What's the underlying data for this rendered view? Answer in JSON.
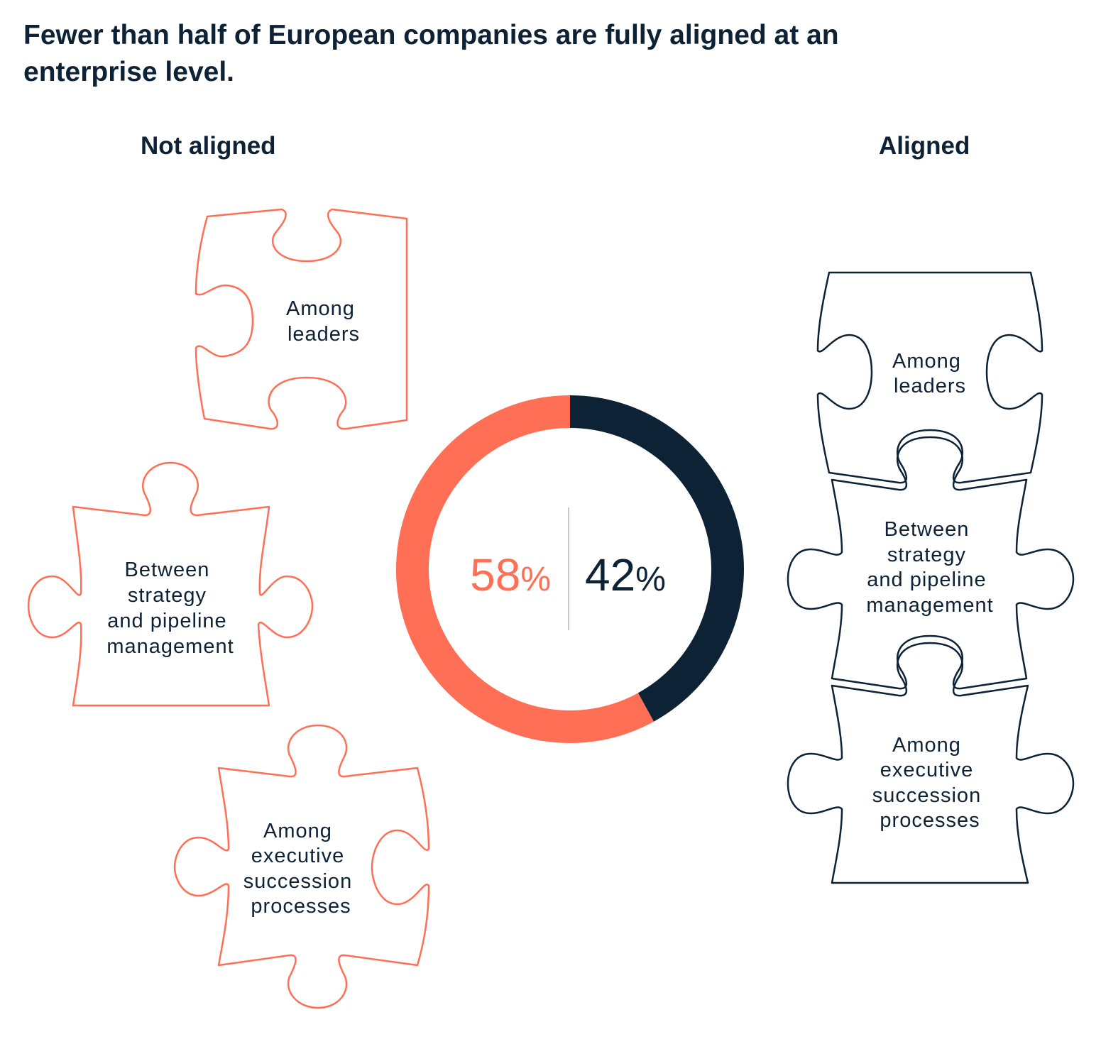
{
  "title": "Fewer than half of European companies are fully aligned at an enterprise level.",
  "colors": {
    "not_aligned": "#ff6f55",
    "aligned": "#0e2236"
  },
  "chart_data": {
    "type": "pie",
    "donut": true,
    "title": "Fewer than half of European companies are fully aligned at an enterprise level.",
    "categories": [
      "Not aligned",
      "Aligned"
    ],
    "values": [
      58,
      42
    ],
    "value_labels": [
      "58%",
      "42%"
    ],
    "colors": [
      "#ff6f55",
      "#0e2236"
    ]
  },
  "not_aligned": {
    "heading": "Not aligned",
    "pieces": [
      {
        "lines": [
          "Among",
          "leaders"
        ]
      },
      {
        "lines": [
          "Between",
          "strategy",
          "and pipeline",
          "management"
        ]
      },
      {
        "lines": [
          "Among",
          "executive",
          "succession",
          "processes"
        ]
      }
    ]
  },
  "aligned": {
    "heading": "Aligned",
    "pieces": [
      {
        "lines": [
          "Among",
          "leaders"
        ]
      },
      {
        "lines": [
          "Between",
          "strategy",
          "and pipeline",
          "management"
        ]
      },
      {
        "lines": [
          "Among",
          "executive",
          "succession",
          "processes"
        ]
      }
    ]
  }
}
